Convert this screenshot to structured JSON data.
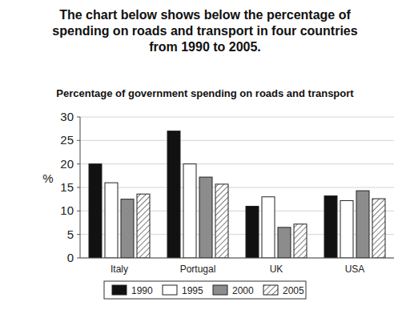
{
  "chart_data": {
    "type": "bar",
    "title": "The chart below shows below the percentage of spending on roads and transport in four countries from 1990 to 2005.",
    "subtitle": "Percentage of government spending on roads and transport",
    "y_label": "%",
    "categories": [
      "Italy",
      "Portugal",
      "UK",
      "USA"
    ],
    "series": [
      {
        "name": "1990",
        "color": "#111111",
        "values": [
          20,
          27,
          11,
          13.2
        ]
      },
      {
        "name": "1995",
        "color": "#ffffff",
        "values": [
          16,
          20,
          13,
          12.2
        ]
      },
      {
        "name": "2000",
        "color": "#8c8c8c",
        "values": [
          12.5,
          17.2,
          6.5,
          14.3
        ]
      },
      {
        "name": "2005",
        "color": "#ffffff",
        "values": [
          13.6,
          15.7,
          7.2,
          12.6
        ]
      }
    ],
    "ylim": [
      0,
      30
    ],
    "yticks": [
      0,
      5,
      10,
      15,
      20,
      25,
      30
    ],
    "grid": true,
    "legend": "bottom"
  }
}
